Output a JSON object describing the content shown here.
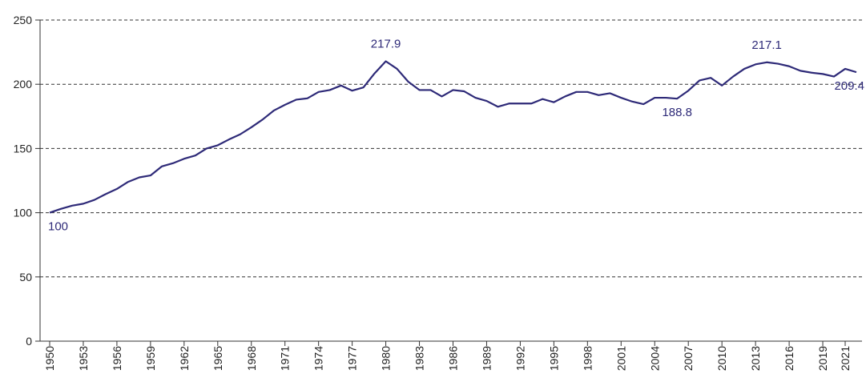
{
  "chart_data": {
    "type": "line",
    "x": [
      1950,
      1951,
      1952,
      1953,
      1954,
      1955,
      1956,
      1957,
      1958,
      1959,
      1960,
      1961,
      1962,
      1963,
      1964,
      1965,
      1966,
      1967,
      1968,
      1969,
      1970,
      1971,
      1972,
      1973,
      1974,
      1975,
      1976,
      1977,
      1978,
      1979,
      1980,
      1981,
      1982,
      1983,
      1984,
      1985,
      1986,
      1987,
      1988,
      1989,
      1990,
      1991,
      1992,
      1993,
      1994,
      1995,
      1996,
      1997,
      1998,
      1999,
      2000,
      2001,
      2002,
      2003,
      2004,
      2005,
      2006,
      2007,
      2008,
      2009,
      2010,
      2011,
      2012,
      2013,
      2014,
      2015,
      2016,
      2017,
      2018,
      2019,
      2020,
      2021,
      2022
    ],
    "series": [
      {
        "color": "#2e2a78",
        "values": [
          100,
          103,
          105.5,
          107,
          110,
          114.5,
          118.5,
          124,
          127.5,
          129,
          136,
          138.5,
          142,
          144.5,
          150,
          152.5,
          157,
          161,
          166.5,
          172.5,
          179.5,
          184,
          188,
          189,
          194,
          195.5,
          199,
          195,
          197.5,
          208.5,
          217.9,
          212,
          202,
          195.5,
          195.5,
          190.5,
          195.5,
          194.5,
          189.5,
          187,
          182.5,
          185,
          185,
          185,
          188.5,
          186,
          190.5,
          194,
          194,
          191.5,
          193,
          189.5,
          186.5,
          184.5,
          189.5,
          189.5,
          188.8,
          195,
          203,
          205,
          199,
          206,
          212,
          215.5,
          217.1,
          216,
          214,
          210.5,
          209,
          208,
          206,
          212,
          209.4
        ]
      }
    ],
    "annotations": [
      {
        "x": 1950,
        "y": 100
      },
      {
        "x": 1980,
        "y": 217.9
      },
      {
        "x": 2006,
        "y": 188.8
      },
      {
        "x": 2014,
        "y": 217.1
      },
      {
        "x": 2022,
        "y": 209.4
      }
    ],
    "xlim": [
      1950,
      2022
    ],
    "xticks": [
      1950,
      1953,
      1956,
      1959,
      1962,
      1965,
      1968,
      1971,
      1974,
      1977,
      1980,
      1983,
      1986,
      1989,
      1992,
      1995,
      1998,
      2001,
      2004,
      2007,
      2010,
      2013,
      2016,
      2019,
      2021
    ],
    "ylim": [
      0,
      250
    ],
    "yticks": [
      0,
      50,
      100,
      150,
      200,
      250
    ],
    "grid": true
  }
}
